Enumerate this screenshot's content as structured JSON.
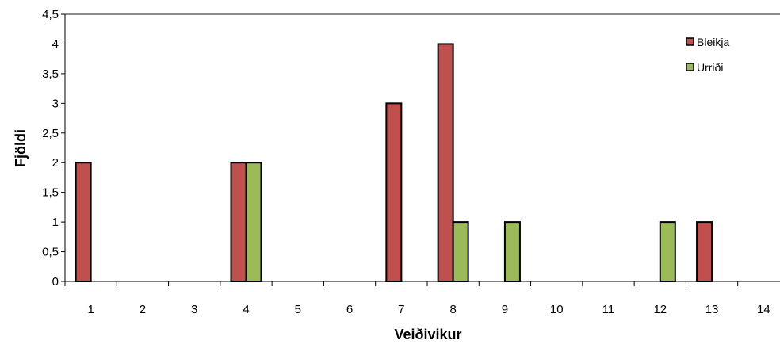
{
  "chart_data": {
    "type": "bar",
    "title": "",
    "xlabel": "Veiðivikur",
    "ylabel": "Fjöldi",
    "categories": [
      "1",
      "2",
      "3",
      "4",
      "5",
      "6",
      "7",
      "8",
      "9",
      "10",
      "11",
      "12",
      "13",
      "14"
    ],
    "series": [
      {
        "name": "Bleikja",
        "color": "#c0504d",
        "values": [
          2,
          0,
          0,
          2,
          0,
          0,
          3,
          4,
          0,
          0,
          0,
          0,
          1,
          0
        ]
      },
      {
        "name": "Urriði",
        "color": "#9bbb59",
        "values": [
          0,
          0,
          0,
          2,
          0,
          0,
          0,
          1,
          1,
          0,
          0,
          1,
          0,
          0
        ]
      }
    ],
    "ylim": [
      0,
      4.5
    ],
    "yticks": [
      "0",
      "0,5",
      "1",
      "1,5",
      "2",
      "2,5",
      "3",
      "3,5",
      "4",
      "4,5"
    ],
    "grid": false,
    "legend_position": "top-right"
  }
}
